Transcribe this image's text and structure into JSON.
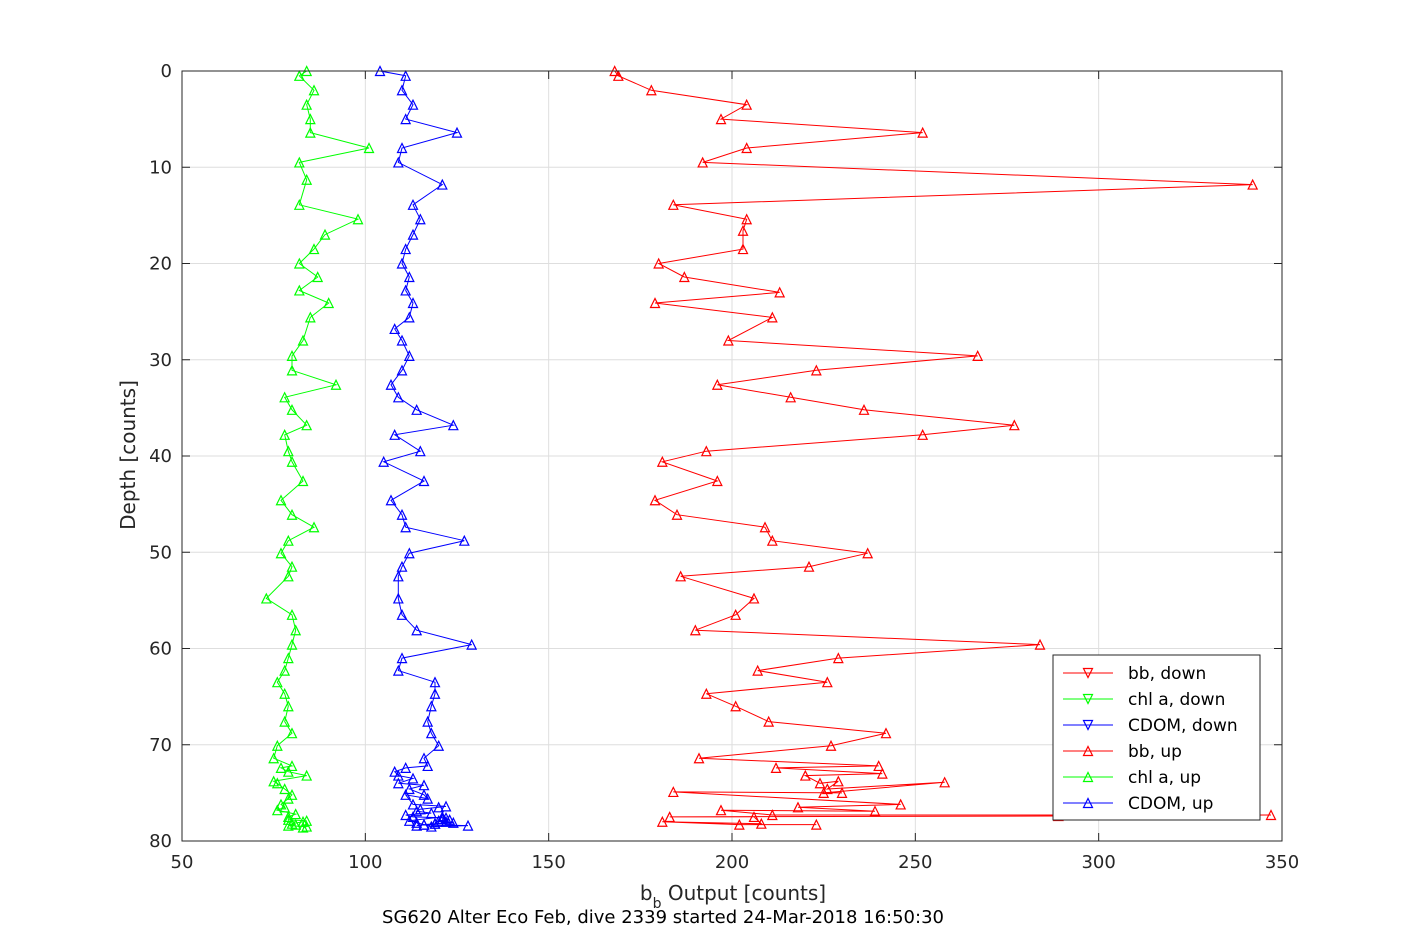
{
  "chart_data": {
    "type": "line",
    "caption": "SG620 Alter Eco Feb, dive 2339 started 24-Mar-2018 16:50:30",
    "xlabel_main": "b",
    "xlabel_sub": "b",
    "xlabel_rest": " Output [counts]",
    "ylabel": "Depth [counts]",
    "xlim": [
      50,
      350
    ],
    "ylim": [
      0,
      80
    ],
    "y_reversed": true,
    "grid": true,
    "legend_position": "lower-right",
    "xticks": [
      "50",
      "100",
      "150",
      "200",
      "250",
      "300",
      "350"
    ],
    "yticks": [
      "0",
      "10",
      "20",
      "30",
      "40",
      "50",
      "60",
      "70",
      "80"
    ],
    "legend": [
      {
        "label": "bb, down",
        "color": "#ff0000",
        "marker": "down"
      },
      {
        "label": "chl a, down",
        "color": "#00ff00",
        "marker": "down"
      },
      {
        "label": "CDOM, down",
        "color": "#0000ff",
        "marker": "down"
      },
      {
        "label": "bb, up",
        "color": "#ff0000",
        "marker": "up"
      },
      {
        "label": "chl a, up",
        "color": "#00ff00",
        "marker": "up"
      },
      {
        "label": "CDOM, up",
        "color": "#0000ff",
        "marker": "up"
      }
    ],
    "series": [
      {
        "name": "bb, up",
        "color": "#ff0000",
        "marker": "up",
        "x": [
          168,
          169,
          178,
          204,
          197,
          252,
          204,
          192,
          342,
          184,
          204,
          203,
          203,
          180,
          187,
          213,
          179,
          211,
          199,
          267,
          223,
          196,
          216,
          236,
          277,
          252,
          193,
          181,
          196,
          179,
          185,
          209,
          211,
          237,
          221,
          186,
          206,
          201,
          190,
          284,
          229,
          207,
          226,
          193,
          201,
          210,
          242,
          227,
          191,
          240,
          212,
          241,
          220,
          224,
          229,
          226,
          258,
          225,
          230,
          184,
          246,
          218,
          239,
          197,
          211,
          347,
          289,
          183,
          206,
          208,
          181,
          202,
          223
        ],
        "y": [
          0,
          0.5,
          2,
          3.5,
          5,
          6.4,
          8,
          9.5,
          11.8,
          13.9,
          15.4,
          16.6,
          18.5,
          20,
          21.4,
          23,
          24.1,
          25.6,
          28,
          29.6,
          31.1,
          32.6,
          33.9,
          35.2,
          36.8,
          37.8,
          39.5,
          40.6,
          42.6,
          44.6,
          46.1,
          47.4,
          48.8,
          50.1,
          51.5,
          52.5,
          54.8,
          56.5,
          58.1,
          59.6,
          61,
          62.3,
          63.5,
          64.7,
          66,
          67.6,
          68.8,
          70.1,
          71.4,
          72.2,
          72.4,
          73,
          73.2,
          74,
          73.8,
          74.6,
          73.9,
          75,
          75,
          74.9,
          76.2,
          76.5,
          76.9,
          76.8,
          77.3,
          77.3,
          77.4,
          77.5,
          77.5,
          78.2,
          78,
          78.3,
          78.3
        ]
      },
      {
        "name": "chl a, up",
        "color": "#00ff00",
        "marker": "up",
        "x": [
          84,
          82,
          86,
          84,
          85,
          85,
          101,
          82,
          84,
          82,
          98,
          89,
          86,
          82,
          87,
          82,
          90,
          85,
          83,
          80,
          80,
          92,
          78,
          80,
          84,
          78,
          79,
          80,
          83,
          77,
          80,
          86,
          79,
          77,
          80,
          79,
          73,
          80,
          81,
          80,
          79,
          78,
          76,
          78,
          79,
          78,
          80,
          76,
          75,
          80,
          77,
          79,
          84,
          75,
          76,
          78,
          80,
          79,
          77,
          78,
          76,
          81,
          79,
          79,
          84,
          83,
          80,
          81,
          79,
          84,
          83
        ],
        "y": [
          0,
          0.5,
          2,
          3.5,
          5,
          6.4,
          8,
          9.5,
          11.3,
          13.9,
          15.4,
          17,
          18.5,
          20,
          21.4,
          22.8,
          24.1,
          25.6,
          28,
          29.6,
          31.1,
          32.6,
          33.9,
          35.2,
          36.8,
          37.8,
          39.5,
          40.6,
          42.6,
          44.6,
          46.1,
          47.4,
          48.8,
          50.1,
          51.5,
          52.5,
          54.8,
          56.5,
          58.1,
          59.6,
          61,
          62.3,
          63.5,
          64.7,
          66,
          67.6,
          68.8,
          70.1,
          71.4,
          72.2,
          72.4,
          72.8,
          73.2,
          73.8,
          74,
          74.6,
          75.2,
          75.6,
          76.2,
          76.5,
          76.8,
          77.2,
          77.5,
          77.8,
          77.9,
          78,
          78.2,
          78.3,
          78.4,
          78.5,
          78.6
        ]
      },
      {
        "name": "CDOM, up",
        "color": "#0000ff",
        "marker": "up",
        "x": [
          104,
          111,
          110,
          113,
          111,
          125,
          110,
          109,
          121,
          113,
          115,
          113,
          111,
          110,
          112,
          111,
          113,
          112,
          108,
          110,
          112,
          110,
          107,
          109,
          114,
          124,
          108,
          115,
          105,
          116,
          107,
          110,
          111,
          127,
          112,
          110,
          109,
          109,
          110,
          114,
          129,
          110,
          109,
          119,
          119,
          118,
          117,
          118,
          120,
          116,
          117,
          111,
          108,
          109,
          113,
          109,
          116,
          112,
          116,
          117,
          111,
          113,
          122,
          120,
          115,
          114,
          118,
          111,
          113,
          122,
          121,
          123,
          120,
          122,
          124,
          119,
          116,
          128,
          118,
          116,
          114,
          112,
          121,
          119,
          114
        ],
        "y": [
          0,
          0.5,
          2,
          3.5,
          5,
          6.4,
          8,
          9.5,
          11.8,
          13.9,
          15.4,
          17,
          18.5,
          20,
          21.4,
          22.8,
          24.1,
          25.6,
          26.8,
          28,
          29.6,
          31.1,
          32.6,
          33.9,
          35.2,
          36.8,
          37.8,
          39.5,
          40.6,
          42.6,
          44.6,
          46.1,
          47.4,
          48.8,
          50.1,
          51.5,
          52.5,
          54.8,
          56.5,
          58.1,
          59.6,
          61,
          62.3,
          63.5,
          64.7,
          66,
          67.6,
          68.8,
          70.1,
          71.4,
          72.2,
          72.4,
          72.8,
          73.2,
          73.5,
          74,
          74.2,
          74.6,
          75.2,
          75.6,
          75.2,
          76.2,
          76.4,
          76.5,
          76.7,
          76.9,
          77.1,
          77.3,
          77.5,
          77.6,
          77.7,
          77.8,
          77.9,
          78,
          78.1,
          78.2,
          78.3,
          78.4,
          78.5,
          78.3,
          78.1,
          77.9,
          77.5,
          78.2,
          78.4
        ]
      }
    ]
  }
}
